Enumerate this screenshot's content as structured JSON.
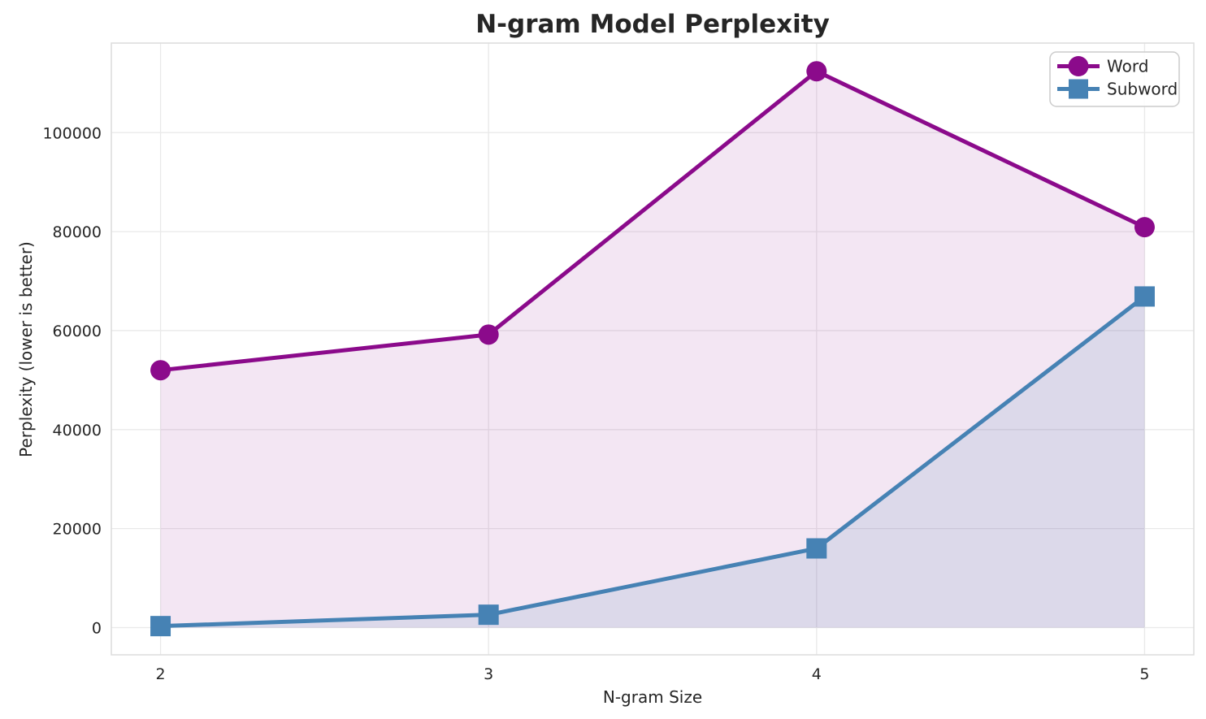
{
  "figure": {
    "title": "N-gram Model Perplexity",
    "xlabel": "N-gram Size",
    "ylabel": "Perplexity (lower is better)"
  },
  "legend": {
    "position": "upper right",
    "items": [
      {
        "label": "Word",
        "marker": "circle"
      },
      {
        "label": "Subword",
        "marker": "square"
      }
    ]
  },
  "chart_data": {
    "type": "line",
    "title": "N-gram Model Perplexity",
    "xlabel": "N-gram Size",
    "ylabel": "Perplexity (lower is better)",
    "x": [
      2,
      3,
      4,
      5
    ],
    "series": [
      {
        "name": "Word",
        "marker": "circle",
        "color": "#8B0A8B",
        "fill_opacity": 0.1,
        "values": [
          52000,
          59200,
          112400,
          80900
        ]
      },
      {
        "name": "Subword",
        "marker": "square",
        "color": "#4682B4",
        "fill_opacity": 0.13,
        "values": [
          300,
          2600,
          16000,
          66900
        ]
      }
    ],
    "xticks": [
      2,
      3,
      4,
      5
    ],
    "yticks": [
      0,
      20000,
      40000,
      60000,
      80000,
      100000
    ],
    "xlim": [
      1.85,
      5.15
    ],
    "ylim": [
      -5500,
      118100
    ],
    "grid": true,
    "fill_to_zero": true,
    "legend_position": "upper right"
  },
  "colors": {
    "background": "#FFFFFF",
    "text": "#262626",
    "grid": "#E9E9E9",
    "spine": "#DCDCDC",
    "legend_border": "#CCCCCC",
    "word": "#8B0A8B",
    "subword": "#4682B4"
  }
}
